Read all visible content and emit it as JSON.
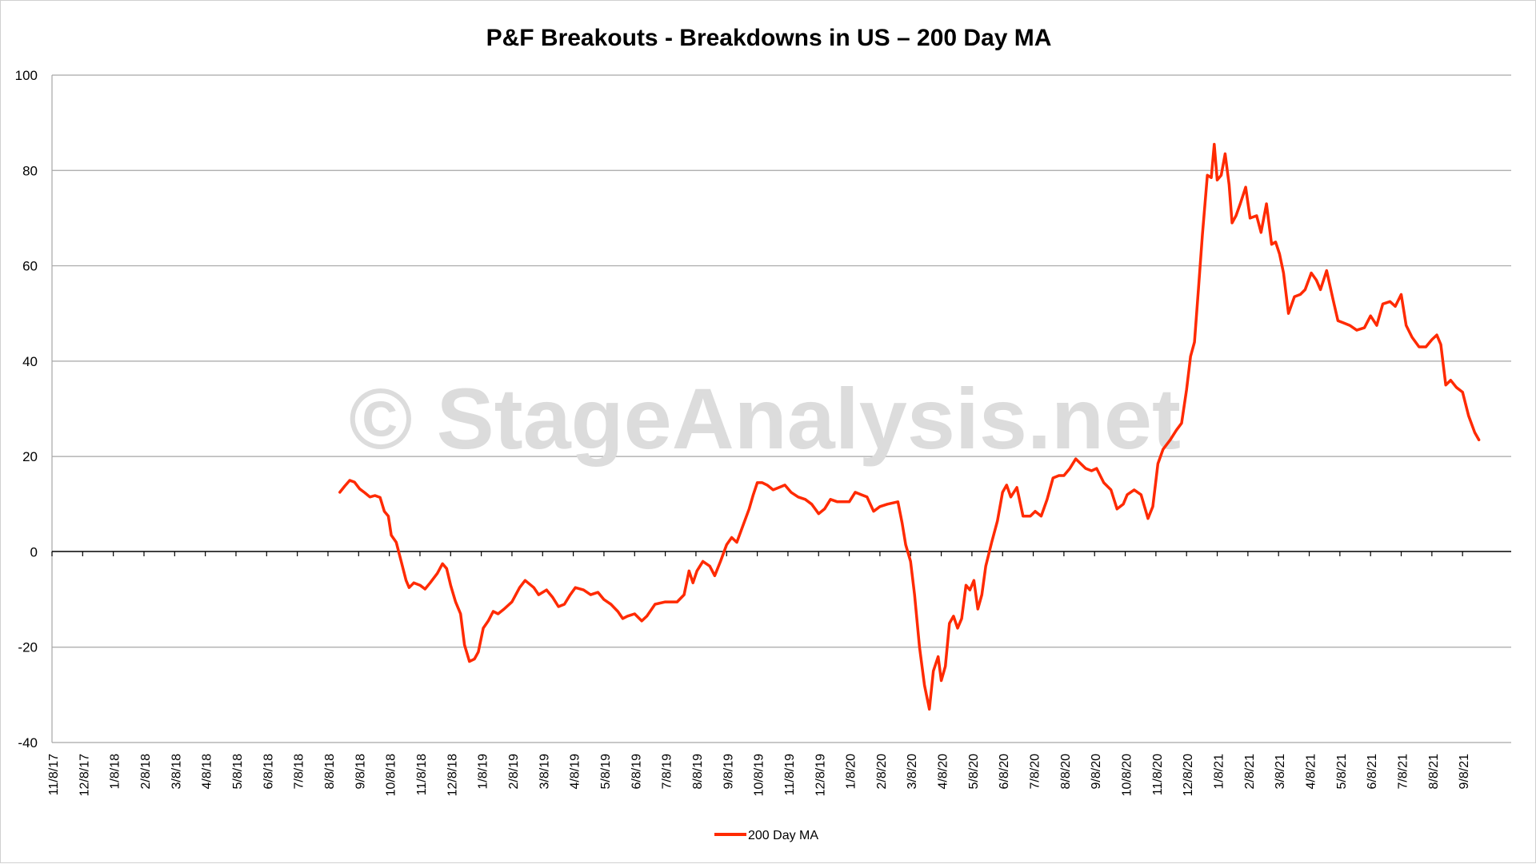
{
  "chart_data": {
    "type": "line",
    "title": "P&F Breakouts - Breakdowns in US – 200 Day MA",
    "watermark": "© StageAnalysis.net",
    "xlabel": "",
    "ylabel": "",
    "ylim": [
      -40,
      100
    ],
    "yticks": [
      100,
      80,
      60,
      40,
      20,
      0,
      -20,
      -40
    ],
    "x_tick_labels": [
      "11/8/17",
      "12/8/17",
      "1/8/18",
      "2/8/18",
      "3/8/18",
      "4/8/18",
      "5/8/18",
      "6/8/18",
      "7/8/18",
      "8/8/18",
      "9/8/18",
      "10/8/18",
      "11/8/18",
      "12/8/18",
      "1/8/19",
      "2/8/19",
      "3/8/19",
      "4/8/19",
      "5/8/19",
      "6/8/19",
      "7/8/19",
      "8/8/19",
      "9/8/19",
      "10/8/19",
      "11/8/19",
      "12/8/19",
      "1/8/20",
      "2/8/20",
      "3/8/20",
      "4/8/20",
      "5/8/20",
      "6/8/20",
      "7/8/20",
      "8/8/20",
      "9/8/20",
      "10/8/20",
      "11/8/20",
      "12/8/20",
      "1/8/21",
      "2/8/21",
      "3/8/21",
      "4/8/21",
      "5/8/21",
      "6/8/21",
      "7/8/21",
      "8/8/21",
      "9/8/21"
    ],
    "grid": true,
    "legend_position": "bottom",
    "colors": {
      "line": "#ff2a00",
      "grid": "#a6a6a6",
      "axis": "#000000"
    },
    "series": [
      {
        "name": "200 Day MA",
        "points": [
          [
            "8/20/18",
            12.5
          ],
          [
            "8/25/18",
            13.8
          ],
          [
            "8/30/18",
            15.0
          ],
          [
            "9/4/18",
            14.6
          ],
          [
            "9/9/18",
            13.2
          ],
          [
            "9/14/18",
            12.4
          ],
          [
            "9/19/18",
            11.5
          ],
          [
            "9/24/18",
            11.8
          ],
          [
            "9/29/18",
            11.4
          ],
          [
            "10/3/18",
            8.5
          ],
          [
            "10/7/18",
            7.5
          ],
          [
            "10/10/18",
            3.5
          ],
          [
            "10/15/18",
            2.0
          ],
          [
            "10/20/18",
            -2.0
          ],
          [
            "10/25/18",
            -6.0
          ],
          [
            "10/28/18",
            -7.5
          ],
          [
            "11/2/18",
            -6.5
          ],
          [
            "11/8/18",
            -7.0
          ],
          [
            "11/13/18",
            -7.8
          ],
          [
            "11/18/18",
            -6.5
          ],
          [
            "11/25/18",
            -4.5
          ],
          [
            "11/30/18",
            -2.5
          ],
          [
            "12/4/18",
            -3.5
          ],
          [
            "12/8/18",
            -7.0
          ],
          [
            "12/13/18",
            -10.5
          ],
          [
            "12/18/18",
            -13.0
          ],
          [
            "12/22/18",
            -19.5
          ],
          [
            "12/27/18",
            -23.0
          ],
          [
            "1/1/19",
            -22.5
          ],
          [
            "1/5/19",
            -21.0
          ],
          [
            "1/10/19",
            -16.0
          ],
          [
            "1/15/19",
            -14.5
          ],
          [
            "1/20/19",
            -12.5
          ],
          [
            "1/25/19",
            -13.0
          ],
          [
            "1/31/19",
            -12.0
          ],
          [
            "2/8/19",
            -10.5
          ],
          [
            "2/15/19",
            -7.5
          ],
          [
            "2/20/19",
            -6.0
          ],
          [
            "2/28/19",
            -7.5
          ],
          [
            "3/4/19",
            -9.0
          ],
          [
            "3/12/19",
            -8.0
          ],
          [
            "3/18/19",
            -9.5
          ],
          [
            "3/24/19",
            -11.5
          ],
          [
            "3/30/19",
            -11.0
          ],
          [
            "4/5/19",
            -9.0
          ],
          [
            "4/10/19",
            -7.5
          ],
          [
            "4/18/19",
            -8.0
          ],
          [
            "4/25/19",
            -9.0
          ],
          [
            "5/2/19",
            -8.5
          ],
          [
            "5/8/19",
            -10.0
          ],
          [
            "5/15/19",
            -11.0
          ],
          [
            "5/22/19",
            -12.5
          ],
          [
            "5/27/19",
            -14.0
          ],
          [
            "6/1/19",
            -13.5
          ],
          [
            "6/8/19",
            -13.0
          ],
          [
            "6/15/19",
            -14.5
          ],
          [
            "6/20/19",
            -13.5
          ],
          [
            "6/28/19",
            -11.0
          ],
          [
            "7/8/19",
            -10.5
          ],
          [
            "7/20/19",
            -10.5
          ],
          [
            "7/27/19",
            -9.0
          ],
          [
            "8/1/19",
            -4.0
          ],
          [
            "8/5/19",
            -6.5
          ],
          [
            "8/9/19",
            -4.0
          ],
          [
            "8/15/19",
            -2.0
          ],
          [
            "8/22/19",
            -3.0
          ],
          [
            "8/27/19",
            -5.0
          ],
          [
            "9/2/19",
            -2.0
          ],
          [
            "9/8/19",
            1.5
          ],
          [
            "9/13/19",
            3.0
          ],
          [
            "9/18/19",
            2.0
          ],
          [
            "9/24/19",
            5.5
          ],
          [
            "9/30/19",
            9.0
          ],
          [
            "10/4/19",
            12.0
          ],
          [
            "10/8/19",
            14.5
          ],
          [
            "10/13/19",
            14.5
          ],
          [
            "10/18/19",
            14.0
          ],
          [
            "10/24/19",
            13.0
          ],
          [
            "10/30/19",
            13.5
          ],
          [
            "11/5/19",
            14.0
          ],
          [
            "11/11/19",
            12.5
          ],
          [
            "11/18/19",
            11.5
          ],
          [
            "11/25/19",
            11.0
          ],
          [
            "12/1/19",
            10.0
          ],
          [
            "12/8/19",
            8.0
          ],
          [
            "12/14/19",
            9.0
          ],
          [
            "12/20/19",
            11.0
          ],
          [
            "12/27/19",
            10.5
          ],
          [
            "1/8/20",
            10.5
          ],
          [
            "1/14/20",
            12.5
          ],
          [
            "1/20/20",
            12.0
          ],
          [
            "1/26/20",
            11.5
          ],
          [
            "2/2/20",
            8.5
          ],
          [
            "2/8/20",
            9.5
          ],
          [
            "2/15/20",
            10.0
          ],
          [
            "2/25/20",
            10.5
          ],
          [
            "2/29/20",
            6.0
          ],
          [
            "3/3/20",
            1.5
          ],
          [
            "3/8/20",
            -2.0
          ],
          [
            "3/12/20",
            -9.0
          ],
          [
            "3/17/20",
            -20.0
          ],
          [
            "3/22/20",
            -28.0
          ],
          [
            "3/27/20",
            -33.0
          ],
          [
            "3/31/20",
            -25.0
          ],
          [
            "4/5/20",
            -22.0
          ],
          [
            "4/8/20",
            -27.0
          ],
          [
            "4/12/20",
            -24.0
          ],
          [
            "4/16/20",
            -15.0
          ],
          [
            "4/20/20",
            -13.5
          ],
          [
            "4/24/20",
            -16.0
          ],
          [
            "4/28/20",
            -14.0
          ],
          [
            "5/2/20",
            -7.0
          ],
          [
            "5/6/20",
            -8.0
          ],
          [
            "5/10/20",
            -6.0
          ],
          [
            "5/14/20",
            -12.0
          ],
          [
            "5/18/20",
            -9.0
          ],
          [
            "5/22/20",
            -3.0
          ],
          [
            "5/28/20",
            2.0
          ],
          [
            "6/3/20",
            6.5
          ],
          [
            "6/8/20",
            12.5
          ],
          [
            "6/12/20",
            14.0
          ],
          [
            "6/16/20",
            11.5
          ],
          [
            "6/22/20",
            13.5
          ],
          [
            "6/28/20",
            7.5
          ],
          [
            "7/5/20",
            7.5
          ],
          [
            "7/10/20",
            8.5
          ],
          [
            "7/16/20",
            7.5
          ],
          [
            "7/22/20",
            11.0
          ],
          [
            "7/28/20",
            15.5
          ],
          [
            "8/3/20",
            16.0
          ],
          [
            "8/8/20",
            16.0
          ],
          [
            "8/14/20",
            17.5
          ],
          [
            "8/20/20",
            19.5
          ],
          [
            "8/25/20",
            18.5
          ],
          [
            "8/30/20",
            17.5
          ],
          [
            "9/5/20",
            17.0
          ],
          [
            "9/10/20",
            17.5
          ],
          [
            "9/17/20",
            14.5
          ],
          [
            "9/24/20",
            13.0
          ],
          [
            "9/30/20",
            9.0
          ],
          [
            "10/6/20",
            10.0
          ],
          [
            "10/10/20",
            12.0
          ],
          [
            "10/17/20",
            13.0
          ],
          [
            "10/24/20",
            12.0
          ],
          [
            "10/31/20",
            7.0
          ],
          [
            "11/5/20",
            9.5
          ],
          [
            "11/10/20",
            18.5
          ],
          [
            "11/15/20",
            21.5
          ],
          [
            "11/22/20",
            23.5
          ],
          [
            "11/28/20",
            25.5
          ],
          [
            "12/3/20",
            27.0
          ],
          [
            "12/8/20",
            34.0
          ],
          [
            "12/12/20",
            41.0
          ],
          [
            "12/16/20",
            44.0
          ],
          [
            "12/20/20",
            55.0
          ],
          [
            "12/24/20",
            66.5
          ],
          [
            "12/29/20",
            79.0
          ],
          [
            "1/2/21",
            78.5
          ],
          [
            "1/5/21",
            85.5
          ],
          [
            "1/8/21",
            78.0
          ],
          [
            "1/12/21",
            79.0
          ],
          [
            "1/16/21",
            83.5
          ],
          [
            "1/20/21",
            77.0
          ],
          [
            "1/23/21",
            69.0
          ],
          [
            "1/27/21",
            70.5
          ],
          [
            "2/1/21",
            73.0
          ],
          [
            "2/6/21",
            76.5
          ],
          [
            "2/10/21",
            70.0
          ],
          [
            "2/16/21",
            70.5
          ],
          [
            "2/20/21",
            67.0
          ],
          [
            "2/25/21",
            73.0
          ],
          [
            "3/1/21",
            64.5
          ],
          [
            "3/5/21",
            65.0
          ],
          [
            "3/9/21",
            62.5
          ],
          [
            "3/13/21",
            58.5
          ],
          [
            "3/18/21",
            50.0
          ],
          [
            "3/24/21",
            53.5
          ],
          [
            "3/30/21",
            54.0
          ],
          [
            "4/4/21",
            55.0
          ],
          [
            "4/10/21",
            58.5
          ],
          [
            "4/15/21",
            57.0
          ],
          [
            "4/19/21",
            55.0
          ],
          [
            "4/25/21",
            59.0
          ],
          [
            "5/1/21",
            53.0
          ],
          [
            "5/6/21",
            48.5
          ],
          [
            "5/12/21",
            48.0
          ],
          [
            "5/18/21",
            47.5
          ],
          [
            "5/25/21",
            46.5
          ],
          [
            "6/2/21",
            47.0
          ],
          [
            "6/8/21",
            49.5
          ],
          [
            "6/14/21",
            47.5
          ],
          [
            "6/20/21",
            52.0
          ],
          [
            "6/27/21",
            52.5
          ],
          [
            "7/2/21",
            51.5
          ],
          [
            "7/8/21",
            54.0
          ],
          [
            "7/13/21",
            47.5
          ],
          [
            "7/19/21",
            45.0
          ],
          [
            "7/26/21",
            43.0
          ],
          [
            "8/2/21",
            43.0
          ],
          [
            "8/8/21",
            44.5
          ],
          [
            "8/13/21",
            45.5
          ],
          [
            "8/17/21",
            43.5
          ],
          [
            "8/22/21",
            35.0
          ],
          [
            "8/27/21",
            36.0
          ],
          [
            "9/2/21",
            34.5
          ],
          [
            "9/8/21",
            33.5
          ],
          [
            "9/14/21",
            28.5
          ],
          [
            "9/20/21",
            25.0
          ],
          [
            "9/24/21",
            23.5
          ]
        ]
      }
    ]
  }
}
